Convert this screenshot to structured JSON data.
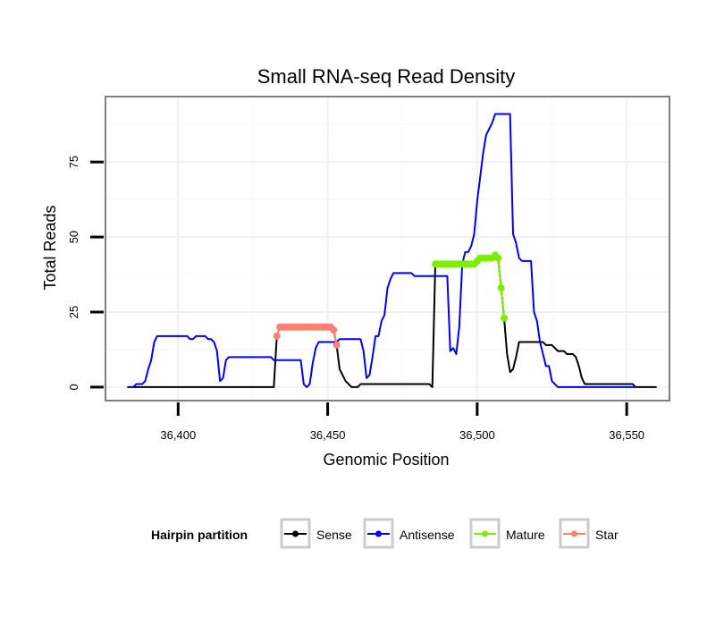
{
  "chart_data": {
    "type": "line",
    "title": "Small RNA-seq Read Density",
    "xlabel": "Genomic Position",
    "ylabel": "Total Reads",
    "xlim": [
      36375.7,
      36564.3
    ],
    "ylim": [
      -4.5,
      96.8
    ],
    "x_ticks": [
      36400,
      36450,
      36500,
      36550
    ],
    "x_tick_labels": [
      "36,400",
      "36,450",
      "36,500",
      "36,550"
    ],
    "y_ticks": [
      0,
      25,
      50,
      75
    ],
    "y_tick_labels": [
      "0",
      "25",
      "50",
      "75"
    ],
    "grid": true,
    "legend": {
      "title": "Hairpin partition",
      "position": "bottom",
      "entries": [
        {
          "name": "Sense",
          "color": "#000000"
        },
        {
          "name": "Antisense",
          "color": "#0000ee"
        },
        {
          "name": "Mature",
          "color": "#7cee00"
        },
        {
          "name": "Star",
          "color": "#fa8072"
        }
      ]
    },
    "series": [
      {
        "name": "Sense",
        "color": "#000000",
        "points": [
          [
            36383,
            0
          ],
          [
            36432,
            0
          ],
          [
            36433,
            17
          ],
          [
            36434,
            20
          ],
          [
            36451,
            20
          ],
          [
            36452,
            19
          ],
          [
            36453,
            14
          ],
          [
            36454,
            6
          ],
          [
            36455,
            4
          ],
          [
            36456,
            2
          ],
          [
            36457,
            1
          ],
          [
            36458,
            0
          ],
          [
            36460,
            0
          ],
          [
            36461,
            1
          ],
          [
            36478,
            1
          ],
          [
            36484,
            1
          ],
          [
            36485,
            0
          ],
          [
            36486,
            41
          ],
          [
            36499,
            41
          ],
          [
            36500,
            42
          ],
          [
            36501,
            43
          ],
          [
            36505,
            43
          ],
          [
            36506,
            44
          ],
          [
            36507,
            43
          ],
          [
            36508,
            33
          ],
          [
            36509,
            23
          ],
          [
            36510,
            11
          ],
          [
            36511,
            5
          ],
          [
            36512,
            6
          ],
          [
            36513,
            10
          ],
          [
            36514,
            15
          ],
          [
            36522,
            15
          ],
          [
            36523,
            14
          ],
          [
            36525,
            14
          ],
          [
            36526,
            13
          ],
          [
            36527,
            12
          ],
          [
            36529,
            12
          ],
          [
            36530,
            11
          ],
          [
            36532,
            11
          ],
          [
            36533,
            10
          ],
          [
            36534,
            7
          ],
          [
            36535,
            3
          ],
          [
            36536,
            1
          ],
          [
            36552,
            1
          ],
          [
            36553,
            0
          ],
          [
            36560,
            0
          ]
        ]
      },
      {
        "name": "Antisense",
        "color": "#0000ee",
        "points": [
          [
            36383,
            0
          ],
          [
            36385,
            0
          ],
          [
            36386,
            1
          ],
          [
            36388,
            1
          ],
          [
            36389,
            2
          ],
          [
            36390,
            6
          ],
          [
            36391,
            9
          ],
          [
            36392,
            15
          ],
          [
            36393,
            17
          ],
          [
            36403,
            17
          ],
          [
            36404,
            16
          ],
          [
            36405,
            16
          ],
          [
            36406,
            17
          ],
          [
            36409,
            17
          ],
          [
            36410,
            16
          ],
          [
            36411,
            16
          ],
          [
            36412,
            15
          ],
          [
            36413,
            12
          ],
          [
            36414,
            2
          ],
          [
            36415,
            3
          ],
          [
            36416,
            9
          ],
          [
            36417,
            10
          ],
          [
            36429,
            10
          ],
          [
            36431,
            10
          ],
          [
            36432,
            9
          ],
          [
            36441,
            9
          ],
          [
            36442,
            1
          ],
          [
            36443,
            0
          ],
          [
            36444,
            1
          ],
          [
            36445,
            8
          ],
          [
            36446,
            13
          ],
          [
            36447,
            15
          ],
          [
            36453,
            15
          ],
          [
            36454,
            16
          ],
          [
            36461,
            16
          ],
          [
            36462,
            12
          ],
          [
            36463,
            3
          ],
          [
            36464,
            4
          ],
          [
            36465,
            10
          ],
          [
            36466,
            17
          ],
          [
            36467,
            17
          ],
          [
            36468,
            22
          ],
          [
            36469,
            24
          ],
          [
            36470,
            33
          ],
          [
            36471,
            36
          ],
          [
            36472,
            38
          ],
          [
            36478,
            38
          ],
          [
            36479,
            37
          ],
          [
            36488,
            37
          ],
          [
            36489,
            37
          ],
          [
            36490,
            37
          ],
          [
            36491,
            12
          ],
          [
            36492,
            13
          ],
          [
            36493,
            11
          ],
          [
            36494,
            20
          ],
          [
            36495,
            41
          ],
          [
            36496,
            45
          ],
          [
            36497,
            45
          ],
          [
            36498,
            47
          ],
          [
            36499,
            51
          ],
          [
            36500,
            62
          ],
          [
            36501,
            70
          ],
          [
            36502,
            78
          ],
          [
            36503,
            84
          ],
          [
            36504,
            86
          ],
          [
            36505,
            88
          ],
          [
            36506,
            91
          ],
          [
            36510,
            91
          ],
          [
            36511,
            91
          ],
          [
            36512,
            51
          ],
          [
            36513,
            48
          ],
          [
            36514,
            43
          ],
          [
            36515,
            42
          ],
          [
            36518,
            42
          ],
          [
            36519,
            25
          ],
          [
            36520,
            22
          ],
          [
            36521,
            15
          ],
          [
            36523,
            7
          ],
          [
            36524,
            7
          ],
          [
            36525,
            2
          ],
          [
            36527,
            0
          ],
          [
            36552,
            0
          ],
          [
            36553,
            0
          ]
        ]
      },
      {
        "name": "Mature",
        "color": "#7cee00",
        "points": [
          [
            36486,
            41
          ],
          [
            36487,
            41
          ],
          [
            36488,
            41
          ],
          [
            36489,
            41
          ],
          [
            36490,
            41
          ],
          [
            36491,
            41
          ],
          [
            36492,
            41
          ],
          [
            36493,
            41
          ],
          [
            36494,
            41
          ],
          [
            36495,
            41
          ],
          [
            36496,
            41
          ],
          [
            36497,
            41
          ],
          [
            36498,
            41
          ],
          [
            36499,
            41
          ],
          [
            36500,
            42
          ],
          [
            36501,
            43
          ],
          [
            36502,
            43
          ],
          [
            36503,
            43
          ],
          [
            36504,
            43
          ],
          [
            36505,
            43
          ],
          [
            36506,
            44
          ],
          [
            36507,
            43
          ],
          [
            36508,
            33
          ],
          [
            36509,
            23
          ]
        ]
      },
      {
        "name": "Star",
        "color": "#fa8072",
        "points": [
          [
            36433,
            17
          ],
          [
            36434,
            20
          ],
          [
            36435,
            20
          ],
          [
            36436,
            20
          ],
          [
            36437,
            20
          ],
          [
            36438,
            20
          ],
          [
            36439,
            20
          ],
          [
            36440,
            20
          ],
          [
            36441,
            20
          ],
          [
            36442,
            20
          ],
          [
            36443,
            20
          ],
          [
            36444,
            20
          ],
          [
            36445,
            20
          ],
          [
            36446,
            20
          ],
          [
            36447,
            20
          ],
          [
            36448,
            20
          ],
          [
            36449,
            20
          ],
          [
            36450,
            20
          ],
          [
            36451,
            20
          ],
          [
            36452,
            19
          ],
          [
            36453,
            14
          ]
        ]
      }
    ]
  }
}
